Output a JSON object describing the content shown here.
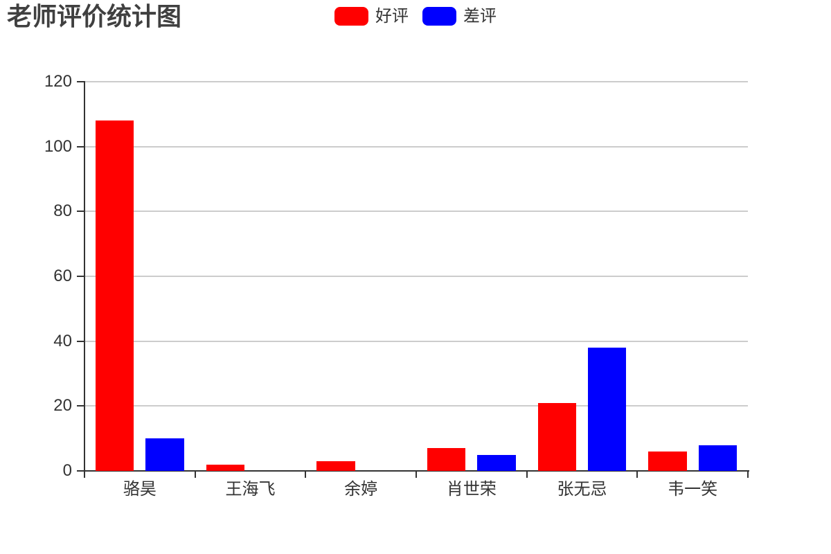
{
  "title": {
    "text": "老师评价统计图"
  },
  "legend": {
    "items": [
      {
        "label": "好评",
        "color": "#ff0000"
      },
      {
        "label": "差评",
        "color": "#0000ff"
      }
    ]
  },
  "chart_data": {
    "type": "bar",
    "title": "老师评价统计图",
    "categories": [
      "骆昊",
      "王海飞",
      "余婷",
      "肖世荣",
      "张无忌",
      "韦一笑"
    ],
    "series": [
      {
        "name": "好评",
        "color": "#ff0000",
        "values": [
          108,
          2,
          3,
          7,
          21,
          6
        ]
      },
      {
        "name": "差评",
        "color": "#0000ff",
        "values": [
          10,
          0,
          0,
          5,
          38,
          8
        ]
      }
    ],
    "xlabel": "",
    "ylabel": "",
    "ylim": [
      0,
      120
    ],
    "yticks": [
      0,
      20,
      40,
      60,
      80,
      100,
      120
    ],
    "grid": true,
    "legend_position": "top-center",
    "colors": {
      "axis": "#333333",
      "grid": "#cccccc",
      "label": "#333333",
      "title": "#404040",
      "background": "#ffffff"
    }
  }
}
